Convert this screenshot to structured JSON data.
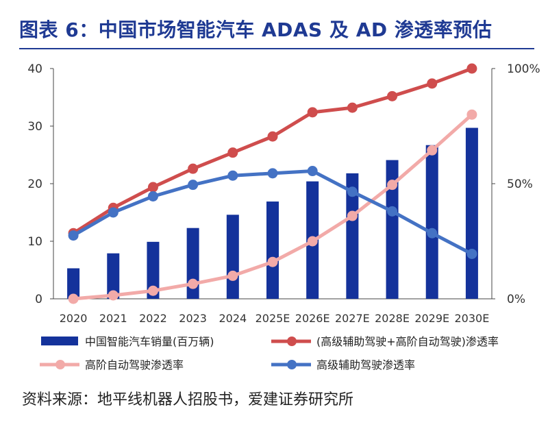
{
  "title": "图表 6：中国市场智能汽车 ADAS 及 AD 渗透率预估",
  "source": "资料来源：地平线机器人招股书，爱建证券研究所",
  "chart_data": {
    "type": "bar+line",
    "categories": [
      "2020",
      "2021",
      "2022",
      "2023",
      "2024",
      "2025E",
      "2026E",
      "2027E",
      "2028E",
      "2029E",
      "2030E"
    ],
    "y_left": {
      "range": [
        0,
        40
      ],
      "ticks": [
        "0",
        "10",
        "20",
        "30",
        "40"
      ]
    },
    "y_right": {
      "range": [
        0,
        100
      ],
      "ticks": [
        "0%",
        "50%",
        "100%"
      ],
      "tick_values": [
        0,
        50,
        100
      ]
    },
    "bars": {
      "name": "中国智能汽车销量(百万辆)",
      "color": "#14329b",
      "axis": "left",
      "values": [
        5.3,
        7.9,
        9.9,
        12.3,
        14.6,
        16.9,
        20.4,
        21.8,
        24.1,
        26.7,
        29.7
      ]
    },
    "lines": [
      {
        "name": "(高级辅助驾驶+高阶自动驾驶)渗透率",
        "color": "#cf4d4d",
        "axis": "right",
        "values": [
          28.5,
          39.5,
          48.5,
          56.5,
          63.5,
          70.5,
          81.0,
          83.0,
          88.0,
          93.5,
          100.0
        ]
      },
      {
        "name": "高阶自动驾驶渗透率",
        "color": "#f2aaa8",
        "axis": "right",
        "values": [
          0.0,
          1.5,
          3.5,
          6.5,
          10.0,
          16.0,
          25.0,
          36.0,
          49.5,
          64.5,
          80.0
        ]
      },
      {
        "name": "高级辅助驾驶渗透率",
        "color": "#4472c4",
        "axis": "right",
        "values": [
          27.5,
          37.5,
          44.5,
          49.5,
          53.5,
          54.5,
          55.5,
          46.5,
          38.0,
          28.5,
          19.5
        ]
      }
    ],
    "legend_order": [
      0,
      1,
      2,
      3
    ],
    "legend_position": "bottom"
  }
}
